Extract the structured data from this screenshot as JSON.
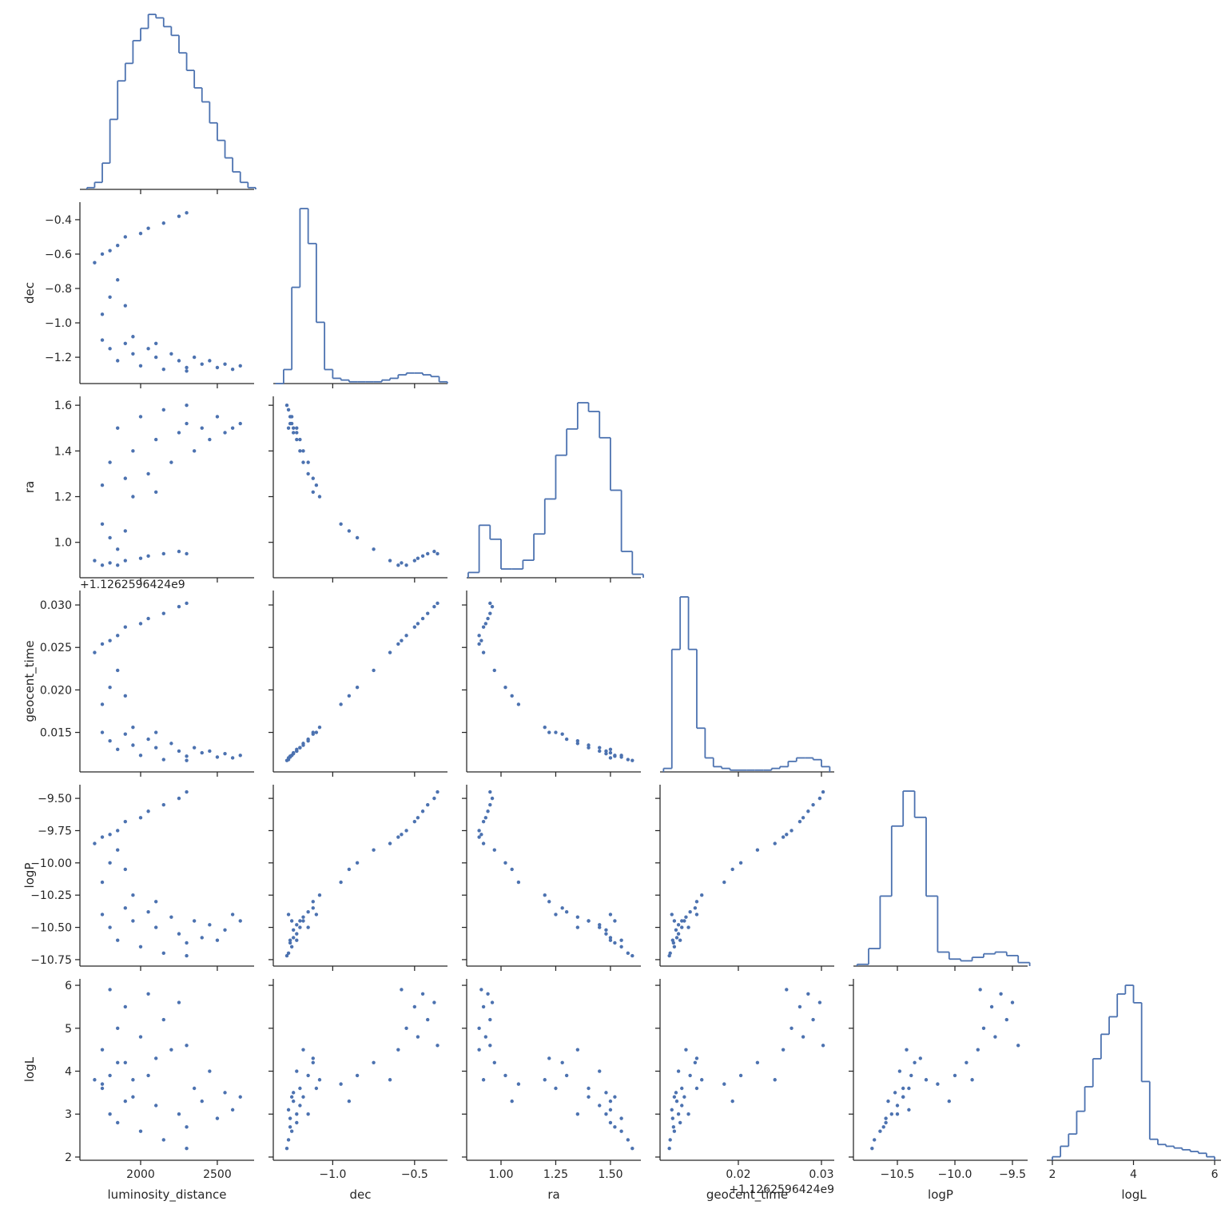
{
  "chart_data": {
    "type": "pairplot",
    "color": "#4c72b0",
    "variables": [
      {
        "name": "luminosity_distance",
        "samples": [
          1750,
          1800,
          1850,
          1900,
          1950,
          2000,
          2050,
          2100,
          2150,
          2200,
          2250,
          2300,
          2350,
          2400,
          2450,
          2500,
          2550,
          2600,
          2650,
          2100,
          1950,
          2300,
          1750,
          1800,
          1850,
          1900,
          1700,
          1750,
          1850,
          1900,
          2000,
          2050,
          2150,
          2250,
          2300,
          1800
        ],
        "bins": [
          1650,
          1700,
          1750,
          1800,
          1850,
          1900,
          1950,
          2000,
          2050,
          2100,
          2150,
          2200,
          2250,
          2300,
          2350,
          2400,
          2450,
          2500,
          2550,
          2600,
          2650,
          2700,
          2750
        ],
        "counts": [
          1,
          4,
          15,
          40,
          62,
          72,
          85,
          92,
          100,
          98,
          93,
          88,
          78,
          68,
          58,
          50,
          38,
          28,
          18,
          10,
          4,
          1
        ],
        "xlim": [
          1604,
          2740
        ],
        "xticks": [
          2000,
          2500
        ]
      },
      {
        "name": "dec",
        "samples": [
          -1.1,
          -1.15,
          -1.22,
          -1.12,
          -1.18,
          -1.25,
          -1.15,
          -1.2,
          -1.27,
          -1.18,
          -1.22,
          -1.26,
          -1.2,
          -1.24,
          -1.22,
          -1.26,
          -1.24,
          -1.27,
          -1.25,
          -1.12,
          -1.08,
          -1.28,
          -0.95,
          -0.85,
          -0.75,
          -0.9,
          -0.65,
          -0.6,
          -0.55,
          -0.5,
          -0.48,
          -0.45,
          -0.42,
          -0.38,
          -0.36,
          -0.58
        ],
        "bins": [
          -1.35,
          -1.3,
          -1.25,
          -1.2,
          -1.15,
          -1.1,
          -1.05,
          -1.0,
          -0.95,
          -0.9,
          -0.85,
          -0.8,
          -0.75,
          -0.7,
          -0.65,
          -0.6,
          -0.55,
          -0.5,
          -0.45,
          -0.4,
          -0.35,
          -0.3
        ],
        "counts": [
          0,
          8,
          55,
          100,
          80,
          35,
          8,
          3,
          2,
          1,
          1,
          1,
          1,
          2,
          3,
          5,
          6,
          6,
          5,
          4,
          1
        ],
        "xlim": [
          -1.363,
          -0.299
        ],
        "xticks": [
          {
            "value": -1.0,
            "label": "−1.0"
          },
          {
            "value": -0.5,
            "label": "−0.5"
          }
        ],
        "ylim": [
          -1.353,
          -0.298
        ],
        "yticks": [
          {
            "value": -0.4,
            "label": "−0.4"
          },
          {
            "value": -0.6,
            "label": "−0.6"
          },
          {
            "value": -0.8,
            "label": "−0.8"
          },
          {
            "value": -1.0,
            "label": "−1.0"
          },
          {
            "value": -1.2,
            "label": "−1.2"
          }
        ]
      },
      {
        "name": "ra",
        "samples": [
          1.25,
          1.35,
          1.5,
          1.28,
          1.4,
          1.55,
          1.3,
          1.45,
          1.58,
          1.35,
          1.48,
          1.52,
          1.4,
          1.5,
          1.45,
          1.55,
          1.48,
          1.5,
          1.52,
          1.22,
          1.2,
          1.6,
          1.08,
          1.02,
          0.97,
          1.05,
          0.92,
          0.9,
          0.9,
          0.92,
          0.93,
          0.94,
          0.95,
          0.96,
          0.95,
          0.91
        ],
        "bins": [
          0.85,
          0.9,
          0.95,
          1.0,
          1.05,
          1.1,
          1.15,
          1.2,
          1.25,
          1.3,
          1.35,
          1.4,
          1.45,
          1.5,
          1.55,
          1.6,
          1.65
        ],
        "counts": [
          3,
          30,
          22,
          5,
          5,
          10,
          25,
          45,
          70,
          85,
          100,
          95,
          80,
          50,
          15,
          2
        ],
        "xlim": [
          0.843,
          1.639
        ],
        "xticks": [
          {
            "value": 1.0,
            "label": "1.00"
          },
          1.25,
          {
            "value": 1.5,
            "label": "1.50"
          }
        ],
        "ylim": [
          0.845,
          1.639
        ],
        "yticks": [
          {
            "value": 1.0,
            "label": "1.0"
          },
          1.2,
          1.4,
          1.6
        ]
      },
      {
        "name": "geocent_time",
        "offset_text": "+1.1262596424e9",
        "samples": [
          0.015,
          0.014,
          0.013,
          0.0148,
          0.0135,
          0.0123,
          0.0142,
          0.0132,
          0.0118,
          0.0137,
          0.0128,
          0.0122,
          0.0132,
          0.0126,
          0.0128,
          0.0121,
          0.0125,
          0.012,
          0.0123,
          0.015,
          0.0156,
          0.0117,
          0.0183,
          0.0203,
          0.0223,
          0.0193,
          0.0244,
          0.0254,
          0.0264,
          0.0274,
          0.0278,
          0.0284,
          0.029,
          0.0298,
          0.0302,
          0.0258
        ],
        "bins": [
          0.011,
          0.012,
          0.013,
          0.014,
          0.015,
          0.016,
          0.017,
          0.018,
          0.019,
          0.02,
          0.021,
          0.022,
          0.023,
          0.024,
          0.025,
          0.026,
          0.027,
          0.028,
          0.029,
          0.03,
          0.031
        ],
        "counts": [
          2,
          70,
          100,
          70,
          25,
          8,
          3,
          2,
          1,
          1,
          1,
          1,
          1,
          2,
          3,
          6,
          8,
          8,
          7,
          3
        ],
        "xlim": [
          0.01058,
          0.03154
        ],
        "xticks": [
          0.02,
          0.03
        ],
        "ylim": [
          0.01035,
          0.0317
        ],
        "yticks": [
          {
            "value": 0.03,
            "label": "0.030"
          },
          0.025,
          {
            "value": 0.02,
            "label": "0.020"
          },
          0.015
        ]
      },
      {
        "name": "logP",
        "samples": [
          -10.4,
          -10.5,
          -10.6,
          -10.35,
          -10.45,
          -10.65,
          -10.38,
          -10.5,
          -10.7,
          -10.42,
          -10.55,
          -10.62,
          -10.45,
          -10.58,
          -10.48,
          -10.6,
          -10.52,
          -10.4,
          -10.45,
          -10.3,
          -10.25,
          -10.72,
          -10.15,
          -10.0,
          -9.9,
          -10.05,
          -9.85,
          -9.8,
          -9.75,
          -9.68,
          -9.65,
          -9.6,
          -9.55,
          -9.5,
          -9.45,
          -9.78
        ],
        "bins": [
          -10.85,
          -10.75,
          -10.65,
          -10.55,
          -10.45,
          -10.35,
          -10.25,
          -10.15,
          -10.05,
          -9.95,
          -9.85,
          -9.75,
          -9.65,
          -9.55,
          -9.45,
          -9.35
        ],
        "counts": [
          1,
          10,
          40,
          80,
          100,
          85,
          40,
          8,
          4,
          3,
          5,
          7,
          8,
          6,
          2
        ],
        "xlim": [
          -10.882,
          -9.368
        ],
        "xticks": [
          {
            "value": -10.5,
            "label": "−10.5"
          },
          {
            "value": -10.0,
            "label": "−10.0"
          },
          {
            "value": -9.5,
            "label": "−9.5"
          }
        ],
        "ylim": [
          -10.8,
          -9.394
        ],
        "yticks": [
          {
            "value": -9.5,
            "label": "−9.50"
          },
          {
            "value": -9.75,
            "label": "−9.75"
          },
          {
            "value": -10.0,
            "label": "−10.00"
          },
          {
            "value": -10.25,
            "label": "−10.25"
          },
          {
            "value": -10.5,
            "label": "−10.50"
          },
          {
            "value": -10.75,
            "label": "−10.75"
          }
        ]
      },
      {
        "name": "logL",
        "samples": [
          3.6,
          3.0,
          2.8,
          4.2,
          3.4,
          2.6,
          3.9,
          3.2,
          2.4,
          4.5,
          3.0,
          2.7,
          3.6,
          3.3,
          4.0,
          2.9,
          3.5,
          3.1,
          3.4,
          4.3,
          3.8,
          2.2,
          3.7,
          3.9,
          4.2,
          3.3,
          3.8,
          4.5,
          5.0,
          5.5,
          4.8,
          5.8,
          5.2,
          5.6,
          4.6,
          5.9
        ],
        "bins": [
          2.0,
          2.2,
          2.4,
          2.6,
          2.8,
          3.0,
          3.2,
          3.4,
          3.6,
          3.8,
          4.0,
          4.2,
          4.4,
          4.6,
          4.8,
          5.0,
          5.2,
          5.4,
          5.6,
          5.8,
          6.0
        ],
        "counts": [
          2,
          8,
          15,
          28,
          42,
          58,
          72,
          82,
          95,
          100,
          90,
          45,
          12,
          9,
          8,
          7,
          6,
          5,
          4,
          2
        ],
        "xlim": [
          1.863,
          6.157
        ],
        "xticks": [
          2,
          4,
          6
        ],
        "ylim": [
          1.925,
          6.15
        ],
        "yticks": [
          2,
          3,
          4,
          5,
          6
        ]
      }
    ]
  }
}
